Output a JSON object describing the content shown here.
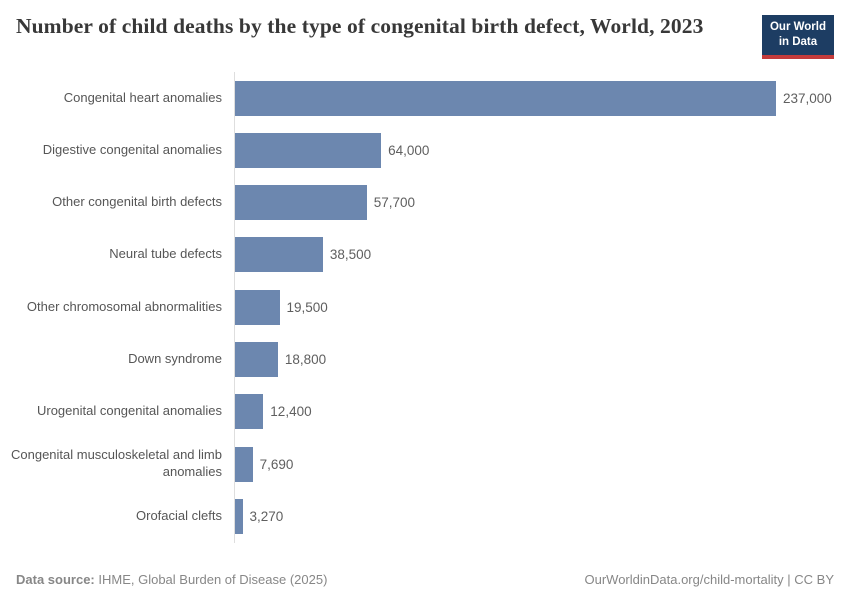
{
  "header": {
    "title": "Number of child deaths by the type of congenital birth defect, World, 2023",
    "logo": {
      "line1": "Our World",
      "line2": "in Data"
    }
  },
  "chart_data": {
    "type": "bar",
    "orientation": "horizontal",
    "title": "Number of child deaths by the type of congenital birth defect, World, 2023",
    "categories": [
      "Congenital heart anomalies",
      "Digestive congenital anomalies",
      "Other congenital birth defects",
      "Neural tube defects",
      "Other chromosomal abnormalities",
      "Down syndrome",
      "Urogenital congenital anomalies",
      "Congenital musculoskeletal and limb anomalies",
      "Orofacial clefts"
    ],
    "values": [
      237000,
      64000,
      57700,
      38500,
      19500,
      18800,
      12400,
      7690,
      3270
    ],
    "value_labels": [
      "237,000",
      "64,000",
      "57,700",
      "38,500",
      "19,500",
      "18,800",
      "12,400",
      "7,690",
      "3,270"
    ],
    "xlabel": "",
    "ylabel": "",
    "xlim": [
      0,
      237000
    ],
    "grid": false,
    "legend": "none",
    "bar_color": "#6c87af",
    "axis_line_color": "#dedede"
  },
  "footer": {
    "source_label": "Data source:",
    "source_text": " IHME, Global Burden of Disease (2025)",
    "link_text": "OurWorldinData.org/child-mortality | CC BY"
  },
  "colors": {
    "title": "#383838",
    "category_label": "#565656",
    "value_label": "#5f5f5f",
    "footer_text": "#878787",
    "logo_navy": "#1d3d63",
    "logo_red": "#c43b3b"
  }
}
